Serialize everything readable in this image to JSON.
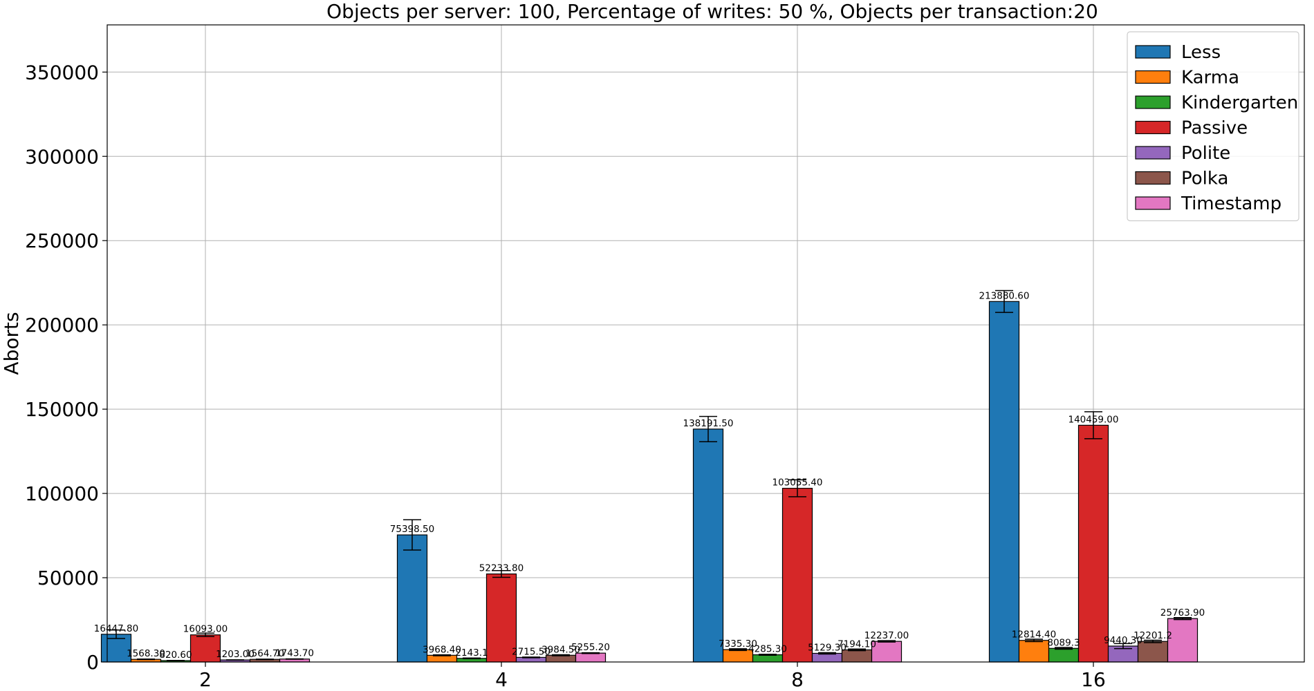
{
  "chart_data": {
    "type": "bar",
    "title": "Objects per server: 100, Percentage of writes: 50 %, Objects per transaction:20",
    "xlabel": "",
    "ylabel": "Aborts",
    "categories": [
      "2",
      "4",
      "8",
      "16"
    ],
    "ylim": [
      0,
      378000
    ],
    "yticks": [
      0,
      50000,
      100000,
      150000,
      200000,
      250000,
      300000,
      350000
    ],
    "grid": true,
    "legend_position": "top-right",
    "series": [
      {
        "name": "Less",
        "color": "#1f77b4",
        "values": [
          16447.8,
          75398.5,
          138191.5,
          213880.6
        ],
        "labels": [
          "16447.80",
          "75398.50",
          "138191.50",
          "213880.60"
        ],
        "errors": [
          2500,
          9000,
          7500,
          6500
        ]
      },
      {
        "name": "Karma",
        "color": "#ff7f0e",
        "values": [
          1568.3,
          3968.4,
          7335.3,
          12814.4
        ],
        "labels": [
          "1568.30",
          "3968.40",
          "7335.30",
          "12814.40"
        ],
        "errors": [
          150,
          300,
          500,
          700
        ]
      },
      {
        "name": "Kindergarten",
        "color": "#2ca02c",
        "values": [
          820.6,
          2143.1,
          4285.3,
          8089.3
        ],
        "labels": [
          "820.60",
          "2143.1",
          "4285.30",
          "8089.3"
        ],
        "errors": [
          80,
          200,
          300,
          500
        ]
      },
      {
        "name": "Passive",
        "color": "#d62728",
        "values": [
          16093.0,
          52233.8,
          103055.4,
          140459.0
        ],
        "labels": [
          "16093.00",
          "52233.80",
          "103055.40",
          "140459.00"
        ],
        "errors": [
          1000,
          2000,
          5000,
          8000
        ]
      },
      {
        "name": "Polite",
        "color": "#9467bd",
        "values": [
          1203.0,
          2715.5,
          5129.3,
          9440.3
        ],
        "labels": [
          "1203.00",
          "2715.50",
          "5129.30",
          "9440.30"
        ],
        "errors": [
          100,
          200,
          400,
          1500
        ]
      },
      {
        "name": "Polka",
        "color": "#8c564b",
        "values": [
          1564.7,
          3984.5,
          7194.1,
          12201.2
        ],
        "labels": [
          "1564.70",
          "3984.50",
          "7194.10",
          "12201.2"
        ],
        "errors": [
          150,
          300,
          500,
          700
        ]
      },
      {
        "name": "Timestamp",
        "color": "#e377c2",
        "values": [
          1743.7,
          5255.2,
          12237.0,
          25763.9
        ],
        "labels": [
          "1743.70",
          "5255.20",
          "12237.00",
          "25763.90"
        ],
        "errors": [
          100,
          250,
          400,
          600
        ]
      }
    ]
  }
}
